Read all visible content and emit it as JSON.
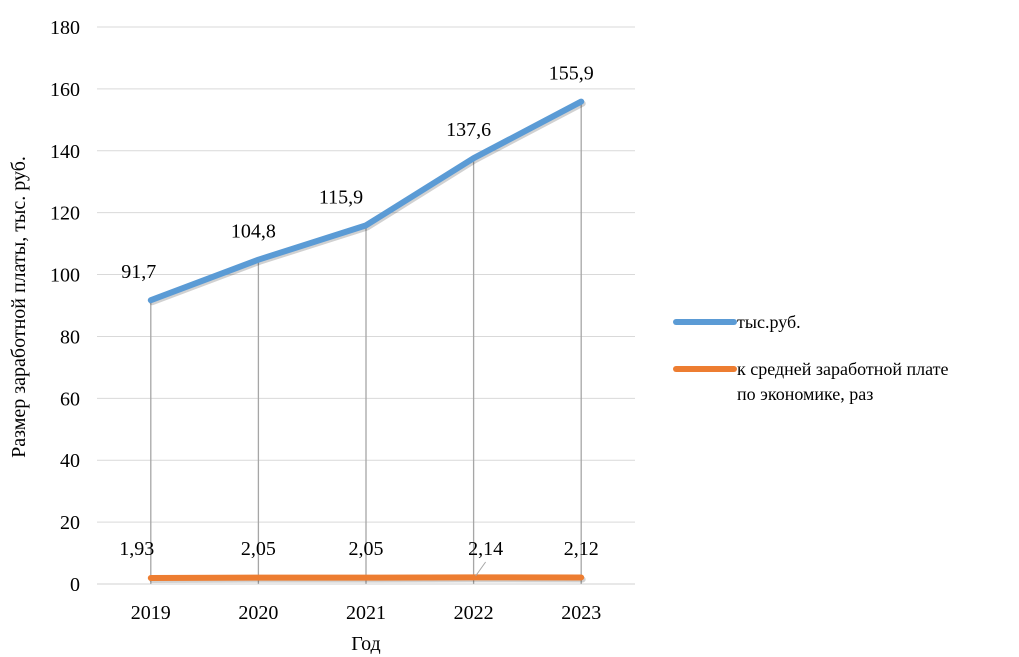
{
  "chart_data": {
    "type": "line",
    "categories": [
      "2019",
      "2020",
      "2021",
      "2022",
      "2023"
    ],
    "series": [
      {
        "name": "тыс.руб.",
        "values": [
          91.7,
          104.8,
          115.9,
          137.6,
          155.9
        ],
        "labels": [
          "91,7",
          "104,8",
          "115,9",
          "137,6",
          "155,9"
        ],
        "color": "#5B9BD5"
      },
      {
        "name": "к средней заработной плате по экономике, раз",
        "legend_lines": [
          "к средней заработной плате",
          "по экономике, раз"
        ],
        "values": [
          1.93,
          2.05,
          2.05,
          2.14,
          2.12
        ],
        "labels": [
          "1,93",
          "2,05",
          "2,05",
          "2,14",
          "2,12"
        ],
        "color": "#ED7D31"
      }
    ],
    "xlabel": "Год",
    "ylabel": "Размер заработной платы, тыс. руб.",
    "ylim": [
      0,
      180
    ],
    "yticks": [
      0,
      20,
      40,
      60,
      80,
      100,
      120,
      140,
      160,
      180
    ],
    "grid": true,
    "drop_lines": true,
    "legend_position": "right"
  }
}
